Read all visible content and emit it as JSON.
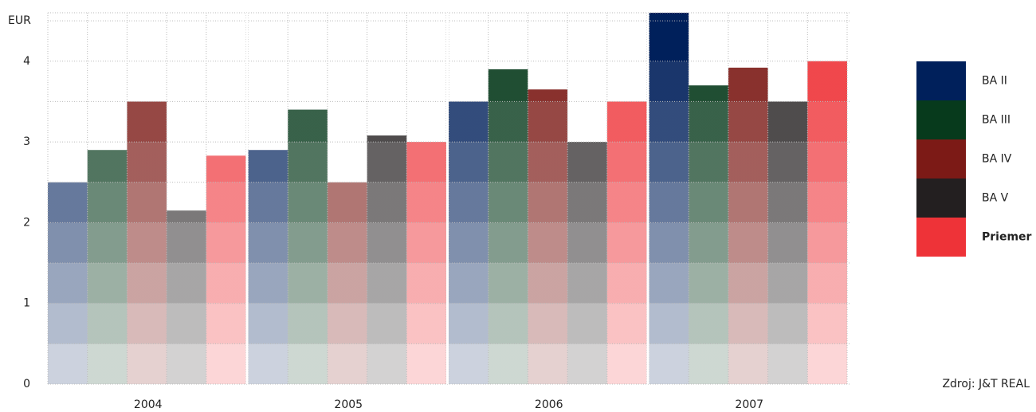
{
  "chart_data": {
    "type": "bar",
    "y_unit": "EUR",
    "source": "Zdroj: J&T REAL",
    "categories": [
      "2004",
      "2005",
      "2006",
      "2007"
    ],
    "series": [
      {
        "name": "BA II",
        "color": "#00205b",
        "values": [
          2.5,
          2.9,
          3.5,
          4.6
        ]
      },
      {
        "name": "BA III",
        "color": "#073a1c",
        "values": [
          2.9,
          3.4,
          3.9,
          3.7
        ]
      },
      {
        "name": "BA IV",
        "color": "#7c1a16",
        "values": [
          3.5,
          2.5,
          3.65,
          3.92
        ]
      },
      {
        "name": "BA V",
        "color": "#231f20",
        "values": [
          2.15,
          3.08,
          3.0,
          3.5
        ]
      },
      {
        "name": "Priemer",
        "color": "#ee3338",
        "values": [
          2.83,
          3.0,
          3.5,
          4.0
        ]
      }
    ],
    "ylim": [
      0,
      4.6
    ],
    "yticks": [
      0,
      1,
      2,
      3,
      4
    ],
    "grid": true,
    "legend": "right"
  }
}
